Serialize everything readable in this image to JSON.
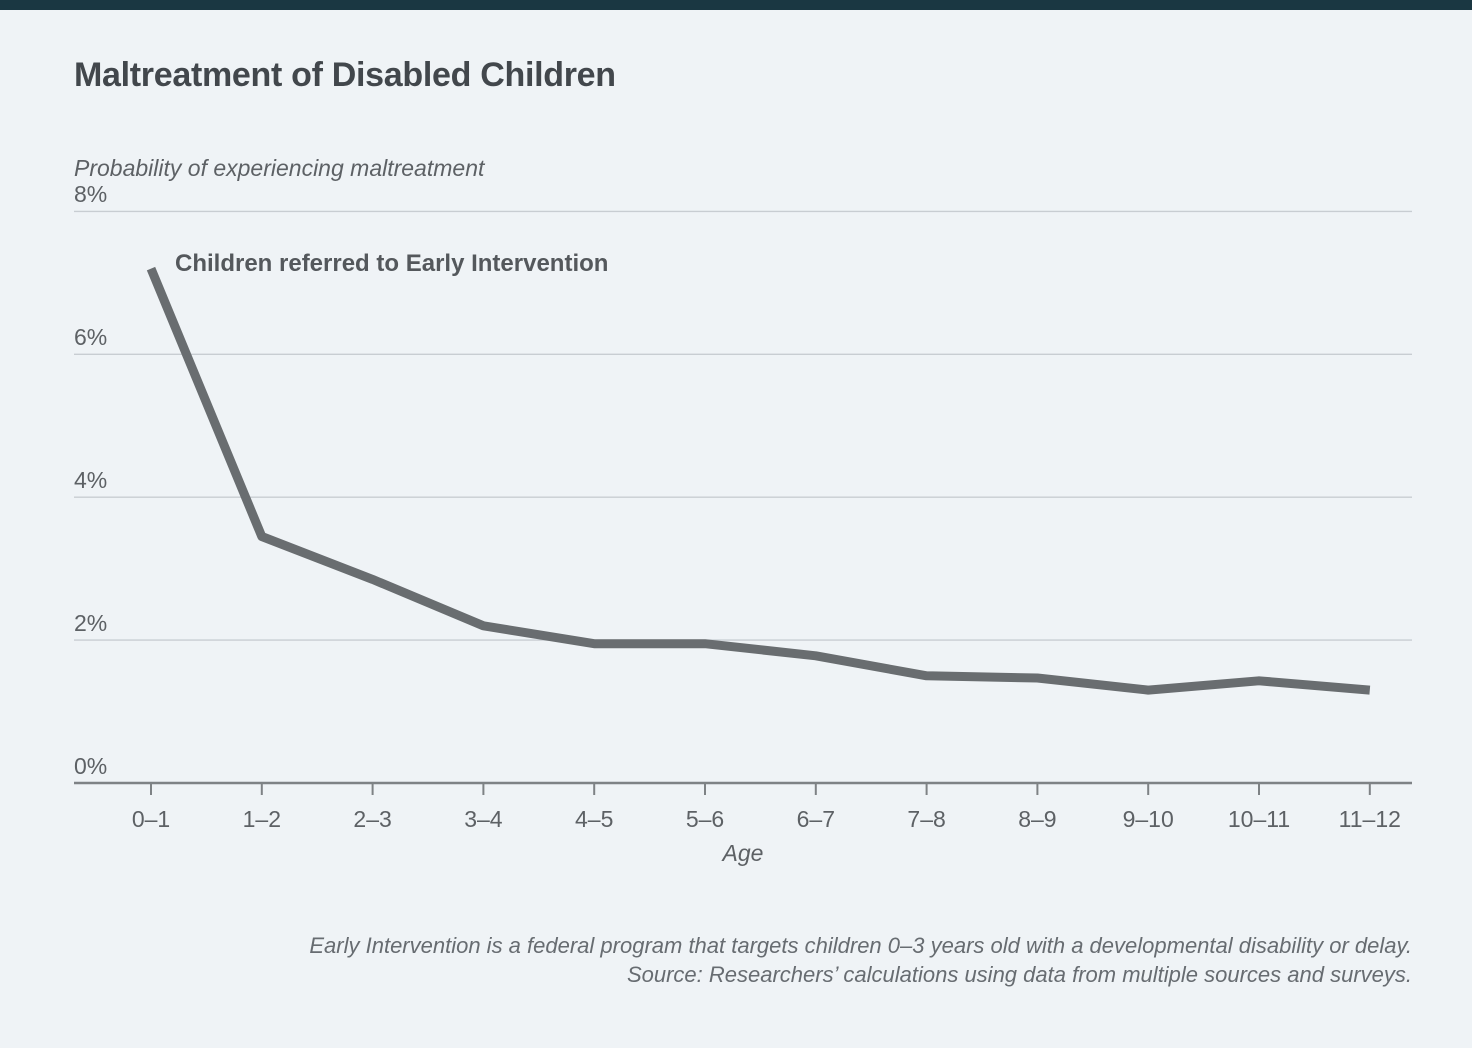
{
  "page": {
    "title": "Maltreatment of Disabled Children",
    "background_color": "#eff3f6",
    "accent_bar_color": "#1a3742"
  },
  "chart_data": {
    "type": "line",
    "title": "Maltreatment of Disabled Children",
    "ylabel": "Probability of experiencing maltreatment",
    "xlabel": "Age",
    "series_label": "Children referred to Early Intervention",
    "categories": [
      "0–1",
      "1–2",
      "2–3",
      "3–4",
      "4–5",
      "5–6",
      "6–7",
      "7–8",
      "8–9",
      "9–10",
      "10–11",
      "11–12"
    ],
    "values": [
      7.2,
      3.45,
      2.85,
      2.2,
      1.95,
      1.95,
      1.78,
      1.5,
      1.47,
      1.3,
      1.43,
      1.3
    ],
    "unit": "%",
    "ylim": [
      0,
      8
    ],
    "yticks": [
      0,
      2,
      4,
      6,
      8
    ],
    "ytick_labels": [
      "0%",
      "2%",
      "4%",
      "6%",
      "8%"
    ],
    "grid": true,
    "legend_position": "inline-annotation",
    "line_color": "#696d70",
    "gridline_color": "#c8cdd2",
    "axis_color": "#7e8285",
    "text_color": "#5d6165"
  },
  "footer": {
    "line1": "Early Intervention is a federal program that targets children 0–3 years old with a developmental disability or delay.",
    "line2": "Source: Researchers’ calculations using data from multiple sources and surveys."
  }
}
